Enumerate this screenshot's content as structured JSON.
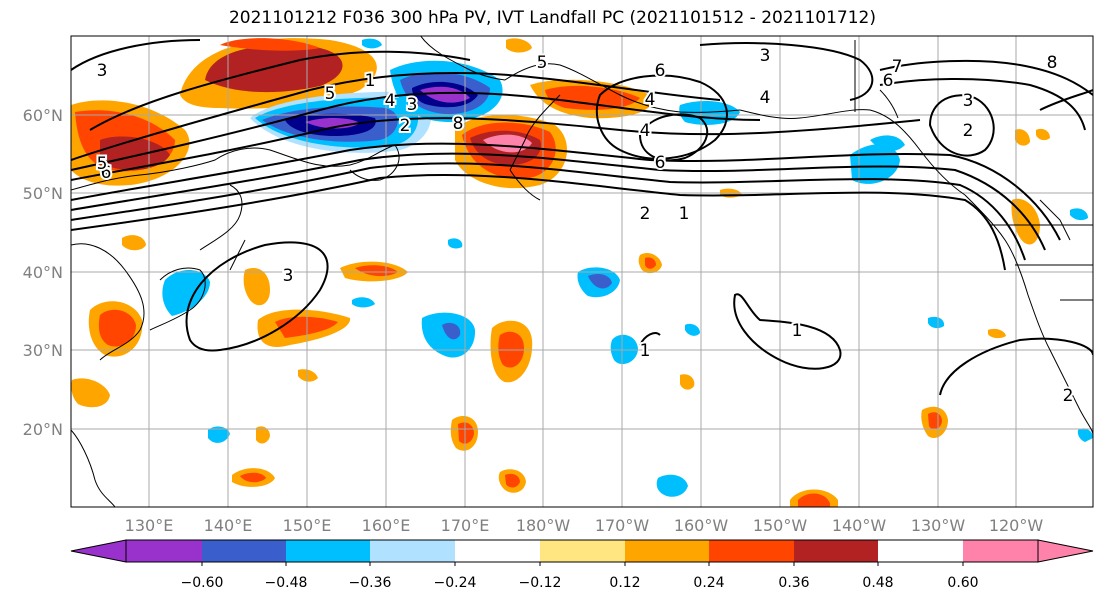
{
  "title": "2021101212 F036 300 hPa PV, IVT Landfall PC (2021101512 - 2021101712)",
  "map": {
    "lat_labels": [
      "20°N",
      "30°N",
      "40°N",
      "50°N",
      "60°N"
    ],
    "lon_labels": [
      "130°E",
      "140°E",
      "150°E",
      "160°E",
      "170°E",
      "180°W",
      "170°W",
      "160°W",
      "150°W",
      "140°W",
      "130°W",
      "120°W"
    ],
    "contour_labels": [
      "3",
      "5",
      "6",
      "4",
      "1",
      "5",
      "4",
      "3",
      "2",
      "8",
      "5",
      "3",
      "6",
      "4",
      "6",
      "3",
      "4",
      "7",
      "6",
      "8",
      "3",
      "2",
      "2",
      "1",
      "2",
      "1",
      "1"
    ]
  },
  "colorbar": {
    "tick_labels": [
      "−0.60",
      "−0.48",
      "−0.36",
      "−0.24",
      "−0.12",
      "0.12",
      "0.24",
      "0.36",
      "0.48",
      "0.60"
    ],
    "colors": [
      "#9932cc",
      "#00008b",
      "#3a5fcd",
      "#00bfff",
      "#b0e2ff",
      "#ffffff",
      "#ffe680",
      "#ffa500",
      "#ff4500",
      "#b22222",
      "#ff82ab"
    ]
  }
}
